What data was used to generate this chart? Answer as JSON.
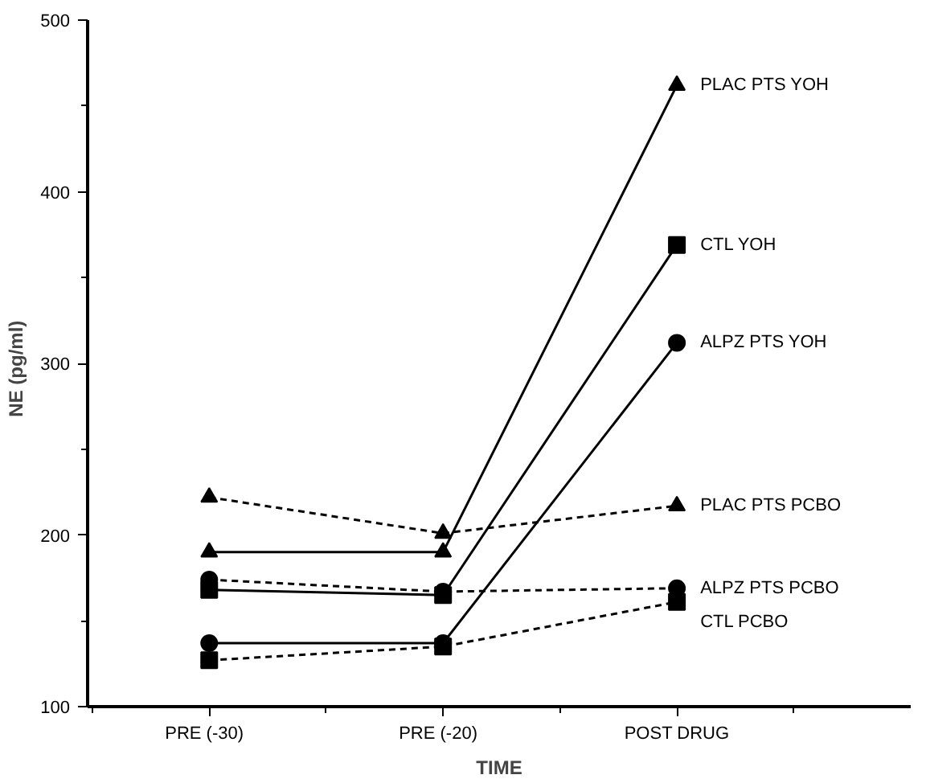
{
  "chart_data": {
    "type": "line",
    "xlabel": "TIME",
    "ylabel": "NE   (pg/ml)",
    "categories": [
      "PRE   (-30)",
      "PRE   (-20)",
      "POST DRUG"
    ],
    "ylim": [
      100,
      500
    ],
    "yticks": [
      100,
      200,
      300,
      400,
      500
    ],
    "grid": false,
    "legend": false,
    "series": [
      {
        "name": "PLAC PTS YOH",
        "color": "#000000",
        "marker": "triangle",
        "line_style": "solid",
        "values": [
          190,
          190,
          462
        ]
      },
      {
        "name": "CTL YOH",
        "color": "#000000",
        "marker": "square",
        "line_style": "solid",
        "values": [
          168,
          165,
          369
        ]
      },
      {
        "name": "ALPZ PTS YOH",
        "color": "#000000",
        "marker": "circle",
        "line_style": "solid",
        "values": [
          137,
          137,
          312
        ]
      },
      {
        "name": "PLAC PTS PCBO",
        "color": "#000000",
        "marker": "triangle",
        "line_style": "dashed",
        "values": [
          222,
          201,
          217
        ]
      },
      {
        "name": "ALPZ PTS PCBO",
        "color": "#000000",
        "marker": "circle",
        "line_style": "dashed",
        "values": [
          174,
          167,
          169
        ]
      },
      {
        "name": "CTL PCBO",
        "color": "#000000",
        "marker": "square",
        "line_style": "dashed",
        "values": [
          127,
          135,
          161
        ]
      }
    ]
  }
}
